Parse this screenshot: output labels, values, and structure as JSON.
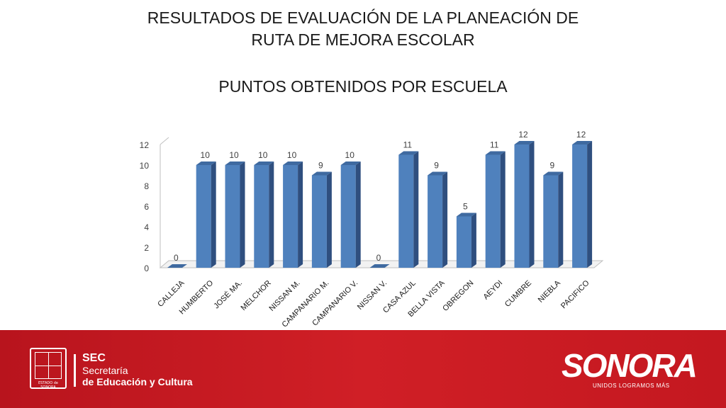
{
  "chart_data": {
    "type": "bar",
    "title_line1": "RESULTADOS DE EVALUACIÓN DE LA PLANEACIÓN DE",
    "title_line2": "RUTA DE MEJORA ESCOLAR",
    "subtitle": "PUNTOS OBTENIDOS POR ESCUELA",
    "categories": [
      "CALLEJA",
      "HUMBERTO",
      "JOSÉ MA.",
      "MELCHOR",
      "NISSAN M.",
      "CAMPANARIO M.",
      "CAMPANARIO V.",
      "NISSAN V.",
      "CASA AZUL",
      "BELLA VISTA",
      "OBREGON",
      "AEYDI",
      "CUMBRE",
      "NIEBLA",
      "PACIFICO"
    ],
    "values": [
      0,
      10,
      10,
      10,
      10,
      9,
      10,
      0,
      11,
      9,
      5,
      11,
      12,
      9,
      12
    ],
    "yticks": [
      0,
      2,
      4,
      6,
      8,
      10,
      12
    ],
    "ylim": [
      0,
      12
    ],
    "xlabel": "",
    "ylabel": "",
    "bar_color": "#4f81bd",
    "bar_side_color": "#2f4f7f",
    "bar_top_color": "#3f6aa0"
  },
  "footer": {
    "sec_line1": "SEC",
    "sec_line2": "Secretaría",
    "sec_line3": "de Educación y Cultura",
    "seal_text": "ESTADO de SONORA",
    "brand_name": "SONORA",
    "brand_tagline": "UNIDOS LOGRAMOS MÁS"
  }
}
